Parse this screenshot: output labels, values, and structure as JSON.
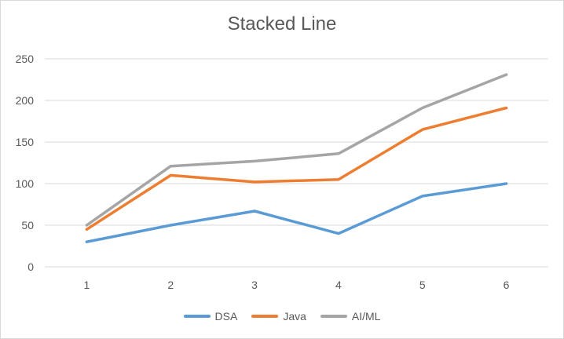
{
  "chart_data": {
    "type": "line",
    "title": "Stacked Line",
    "categories": [
      "1",
      "2",
      "3",
      "4",
      "5",
      "6"
    ],
    "ylim": [
      0,
      250
    ],
    "yticks": [
      0,
      50,
      100,
      150,
      200,
      250
    ],
    "grid": true,
    "legend_position": "bottom",
    "stacked": true,
    "series": [
      {
        "name": "DSA",
        "color": "#5b9bd5",
        "values": [
          30,
          50,
          67,
          40,
          85,
          100
        ]
      },
      {
        "name": "Java",
        "color": "#ed7d31",
        "values": [
          45,
          110,
          102,
          105,
          165,
          191
        ]
      },
      {
        "name": "AI/ML",
        "color": "#a5a5a5",
        "values": [
          50,
          121,
          127,
          136,
          191,
          231
        ]
      }
    ]
  }
}
